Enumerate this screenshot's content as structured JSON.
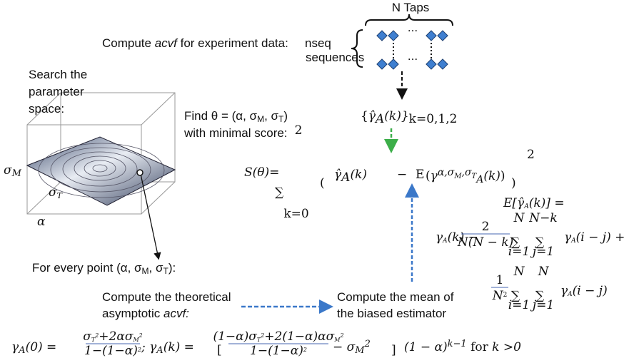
{
  "labels": {
    "n_taps": "N Taps",
    "compute_acvf": [
      "Compute ",
      "acvf",
      " for experiment data:"
    ],
    "nseq": "nseq",
    "sequences": "sequences",
    "ellipsis": "...",
    "search": [
      "Search the",
      "parameter",
      "space:"
    ],
    "find": [
      "Find θ = (α, σ",
      "M",
      ", σ",
      "T",
      ")"
    ],
    "minimal": "with minimal score:",
    "axis_sigma_m": [
      "σ",
      "M"
    ],
    "axis_sigma_t": [
      "σ",
      "T"
    ],
    "axis_alpha": "α",
    "every_point": [
      "For every point (α, σ",
      "M",
      ", σ",
      "T",
      "):"
    ],
    "theoretical": [
      "Compute the theoretical",
      "asymptotic ",
      "acvf:"
    ],
    "mean": [
      "Compute the mean of",
      "the biased estimator"
    ]
  },
  "formulas": {
    "gamma_set": [
      "{",
      "γ̂",
      "A",
      "(k)}",
      "k=0,1,2"
    ],
    "score_lhs": "S(θ)=",
    "sum": "∑",
    "score_upper": "2",
    "score_lower": "k=0",
    "score_open": "(",
    "score_est": [
      "γ̂",
      "A",
      "(k)"
    ],
    "score_minus": "−",
    "score_expect": "E",
    "score_model": [
      "(",
      "γ",
      "α,σ",
      "M",
      ",σ",
      "T",
      "A",
      "(k)",
      ")"
    ],
    "score_close": ")",
    "score_power": "2",
    "expectation": [
      "E[",
      "γ̂",
      "A",
      "(k)] ="
    ],
    "bias_term": [
      "γ",
      "A",
      "(k) −"
    ],
    "bias_frac": [
      "2",
      "N(N − k)"
    ],
    "bias_limits": [
      "N",
      "i=1",
      "N−k",
      "j=1"
    ],
    "bias_inner": [
      "γ",
      "A",
      "(i − j) +"
    ],
    "var_frac": [
      "1",
      "N",
      "2"
    ],
    "var_limits": [
      "N",
      "i=1",
      "N",
      "j=1"
    ],
    "var_inner": [
      "γ",
      "A",
      "(i − j)"
    ],
    "theory_0": [
      "γ",
      "A",
      "(0) = "
    ],
    "theory_0_num": [
      "σ",
      "T",
      "2",
      "+2ασ",
      "M",
      "2"
    ],
    "denominator": [
      "1−(1−α)",
      "2"
    ],
    "theory_k": [
      "; γ",
      "A",
      "(k) = "
    ],
    "bracket_open": "[",
    "theory_k_num": [
      "(1−α)σ",
      "T",
      "2",
      "+2(1−α)ασ",
      "M",
      "2"
    ],
    "theory_k_tail": [
      "− σ",
      "M",
      "2"
    ],
    "bracket_close": "]",
    "decay": [
      "(1 − α)",
      "k−1",
      " for ",
      "k",
      " >0"
    ]
  }
}
